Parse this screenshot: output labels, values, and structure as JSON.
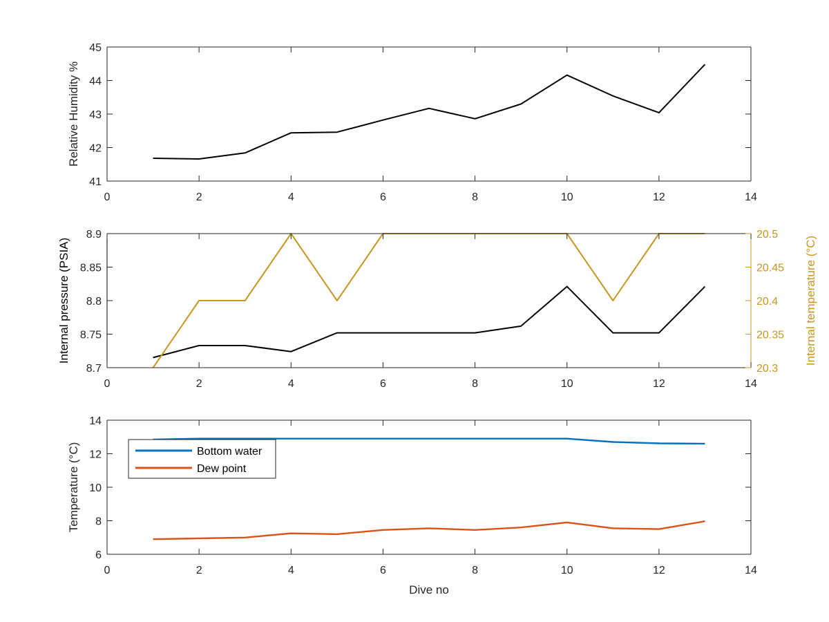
{
  "xlabel": "Dive no",
  "colors": {
    "axis": "#262626",
    "black_series": "#000000",
    "gold": "#C8961E",
    "blue": "#0072BD",
    "orange": "#D95319"
  },
  "chart_data": [
    {
      "type": "line",
      "ylabel": "Relative Humidity %",
      "xlim": [
        0,
        14
      ],
      "ylim": [
        41,
        45
      ],
      "xticks": [
        0,
        2,
        4,
        6,
        8,
        10,
        12,
        14
      ],
      "yticks": [
        41,
        42,
        43,
        44,
        45
      ],
      "grid": false,
      "series": [
        {
          "color": "#000000",
          "x": [
            1,
            2,
            3,
            4,
            5,
            6,
            7,
            8,
            9,
            10,
            11,
            12,
            13
          ],
          "y": [
            41.68,
            41.66,
            41.84,
            42.44,
            42.46,
            42.82,
            43.17,
            42.86,
            43.3,
            44.16,
            43.54,
            43.04,
            44.48
          ]
        }
      ]
    },
    {
      "type": "line",
      "ylabel": "Internal pressure (PSIA)",
      "y2label": "Internal temperature (°C)",
      "xlim": [
        0,
        14
      ],
      "ylim": [
        8.7,
        8.9
      ],
      "y2lim": [
        20.3,
        20.5
      ],
      "xticks": [
        0,
        2,
        4,
        6,
        8,
        10,
        12,
        14
      ],
      "yticks": [
        8.7,
        8.75,
        8.8,
        8.85,
        8.9
      ],
      "ytick_labels": [
        "8.7",
        "8.75",
        "8.8",
        "8.85",
        "8.9"
      ],
      "y2ticks": [
        20.3,
        20.35,
        20.4,
        20.45,
        20.5
      ],
      "y2tick_labels": [
        "20.3",
        "20.35",
        "20.4",
        "20.45",
        "20.5"
      ],
      "grid": false,
      "series": [
        {
          "axis": "left",
          "color": "#000000",
          "x": [
            1,
            2,
            3,
            4,
            5,
            6,
            7,
            8,
            9,
            10,
            11,
            12,
            13
          ],
          "y": [
            8.715,
            8.733,
            8.733,
            8.724,
            8.752,
            8.752,
            8.752,
            8.752,
            8.762,
            8.821,
            8.752,
            8.752,
            8.821
          ]
        },
        {
          "axis": "right",
          "color": "#C8961E",
          "x": [
            1,
            2,
            3,
            4,
            5,
            6,
            7,
            8,
            9,
            10,
            11,
            12,
            13
          ],
          "y": [
            20.3,
            20.4,
            20.4,
            20.5,
            20.4,
            20.5,
            20.5,
            20.5,
            20.5,
            20.5,
            20.4,
            20.5,
            20.5
          ]
        }
      ]
    },
    {
      "type": "line",
      "ylabel": "Temperature (°C)",
      "xlabel": "Dive no",
      "xlim": [
        0,
        14
      ],
      "ylim": [
        6,
        14
      ],
      "xticks": [
        0,
        2,
        4,
        6,
        8,
        10,
        12,
        14
      ],
      "yticks": [
        6,
        8,
        10,
        12,
        14
      ],
      "grid": false,
      "legend": "top-left",
      "series": [
        {
          "name": "Bottom water",
          "color": "#0072BD",
          "x": [
            1,
            2,
            3,
            4,
            5,
            6,
            7,
            8,
            9,
            10,
            11,
            12,
            13
          ],
          "y": [
            12.85,
            12.9,
            12.9,
            12.9,
            12.9,
            12.9,
            12.9,
            12.9,
            12.9,
            12.9,
            12.7,
            12.62,
            12.6
          ]
        },
        {
          "name": "Dew point",
          "color": "#D95319",
          "x": [
            1,
            2,
            3,
            4,
            5,
            6,
            7,
            8,
            9,
            10,
            11,
            12,
            13
          ],
          "y": [
            6.9,
            6.95,
            7.0,
            7.25,
            7.2,
            7.45,
            7.55,
            7.45,
            7.6,
            7.9,
            7.55,
            7.5,
            7.97
          ]
        }
      ]
    }
  ]
}
